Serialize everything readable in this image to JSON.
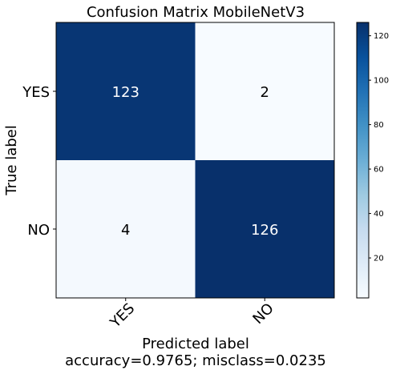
{
  "chart_data": {
    "type": "heatmap",
    "title": "Confusion Matrix MobileNetV3",
    "xlabel": "Predicted label",
    "xlabel_note": "accuracy=0.9765; misclass=0.0235",
    "ylabel": "True label",
    "x_categories": [
      "YES",
      "NO"
    ],
    "y_categories": [
      "YES",
      "NO"
    ],
    "values": [
      [
        123,
        2
      ],
      [
        4,
        126
      ]
    ],
    "value_text": [
      [
        "123",
        "2"
      ],
      [
        "4",
        "126"
      ]
    ],
    "colormap": "Blues",
    "colorbar": {
      "range": [
        2,
        126
      ],
      "ticks": [
        20,
        40,
        60,
        80,
        100,
        120
      ],
      "tick_labels": [
        "20",
        "40",
        "60",
        "80",
        "100",
        "120"
      ]
    },
    "grid": false
  }
}
